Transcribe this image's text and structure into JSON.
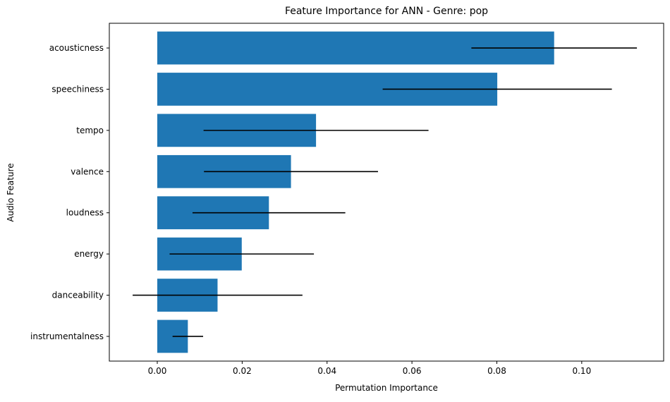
{
  "chart_data": {
    "type": "bar",
    "orientation": "horizontal",
    "title": "Feature Importance for ANN - Genre: pop",
    "xlabel": "Permutation Importance",
    "ylabel": "Audio Feature",
    "categories": [
      "acousticness",
      "speechiness",
      "tempo",
      "valence",
      "loudness",
      "energy",
      "danceability",
      "instrumentalness"
    ],
    "values": [
      0.0935,
      0.0801,
      0.0374,
      0.0315,
      0.0263,
      0.0199,
      0.0142,
      0.0072
    ],
    "errors": [
      0.0195,
      0.027,
      0.0265,
      0.0205,
      0.018,
      0.017,
      0.02,
      0.0036
    ],
    "xlim": [
      -0.0113,
      0.1193
    ],
    "xticks": [
      0.0,
      0.02,
      0.04,
      0.06,
      0.08,
      0.1
    ],
    "xtick_labels": [
      "0.00",
      "0.02",
      "0.04",
      "0.06",
      "0.08",
      "0.10"
    ],
    "bar_color": "#1f77b4",
    "error_color": "#000000",
    "grid": false
  }
}
